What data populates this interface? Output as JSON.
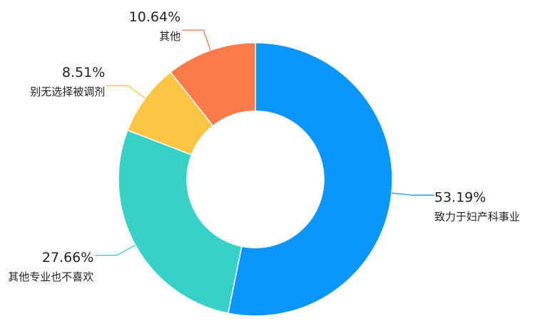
{
  "chart_data": {
    "type": "donut",
    "categories": [
      "致力于妇产科事业",
      "其他专业也不喜欢",
      "别无选择被调剂",
      "其他"
    ],
    "values": [
      53.19,
      27.66,
      8.51,
      10.64
    ],
    "value_labels": [
      "53.19%",
      "27.66%",
      "8.51%",
      "10.64%"
    ],
    "colors": [
      "#0a96fc",
      "#38d1c7",
      "#fdc541",
      "#fd7a4a"
    ]
  }
}
